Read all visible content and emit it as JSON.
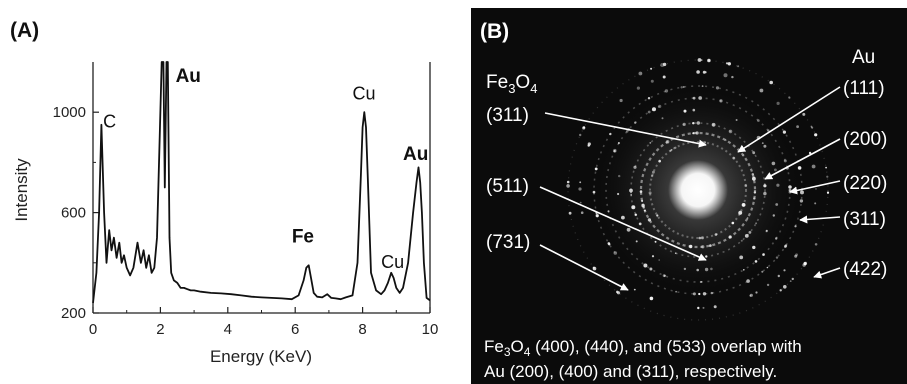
{
  "panel_a": {
    "label": "(A)",
    "chart_data": {
      "type": "line",
      "xlabel": "Energy (KeV)",
      "ylabel": "Intensity",
      "xlim": [
        0,
        10
      ],
      "ylim": [
        200,
        1200
      ],
      "x_ticks": [
        0,
        2,
        4,
        6,
        8,
        10
      ],
      "y_ticks": [
        200,
        600,
        1000
      ],
      "grid": false,
      "series": [
        {
          "x": [
            0,
            0.1,
            0.18,
            0.25,
            0.33,
            0.4,
            0.48,
            0.55,
            0.62,
            0.7,
            0.78,
            0.85,
            0.92,
            1.0,
            1.1,
            1.2,
            1.32,
            1.42,
            1.5,
            1.58,
            1.66,
            1.74,
            1.82,
            1.9,
            1.98,
            2.04,
            2.09,
            2.13,
            2.18,
            2.22,
            2.27,
            2.32,
            2.4,
            2.5,
            2.6,
            2.7,
            2.8,
            2.9,
            3.0,
            3.2,
            3.5,
            3.8,
            4.1,
            4.4,
            4.7,
            5.0,
            5.3,
            5.6,
            5.9,
            6.1,
            6.25,
            6.33,
            6.4,
            6.47,
            6.55,
            6.65,
            6.8,
            6.95,
            7.07,
            7.2,
            7.35,
            7.5,
            7.7,
            7.85,
            7.95,
            8.0,
            8.05,
            8.1,
            8.15,
            8.25,
            8.4,
            8.55,
            8.65,
            8.75,
            8.85,
            8.92,
            9.0,
            9.1,
            9.2,
            9.35,
            9.5,
            9.6,
            9.66,
            9.71,
            9.76,
            9.82,
            9.9,
            10.0
          ],
          "y": [
            240,
            360,
            600,
            950,
            600,
            400,
            530,
            450,
            500,
            420,
            480,
            400,
            430,
            380,
            350,
            380,
            480,
            400,
            450,
            380,
            430,
            360,
            380,
            500,
            900,
            1500,
            1500,
            700,
            1500,
            1500,
            500,
            360,
            330,
            320,
            300,
            300,
            295,
            290,
            290,
            285,
            280,
            278,
            275,
            270,
            265,
            262,
            260,
            258,
            255,
            270,
            330,
            380,
            390,
            340,
            280,
            265,
            262,
            275,
            260,
            258,
            255,
            262,
            270,
            400,
            750,
            940,
            1000,
            940,
            750,
            360,
            290,
            275,
            290,
            320,
            360,
            340,
            300,
            280,
            300,
            400,
            600,
            720,
            780,
            720,
            600,
            400,
            260,
            250
          ]
        }
      ],
      "annotations": [
        {
          "text": "C",
          "x": 0.3,
          "y": 940,
          "bold": false
        },
        {
          "text": "Au",
          "x": 2.45,
          "y": 1120,
          "bold": true
        },
        {
          "text": "Fe",
          "x": 5.9,
          "y": 480,
          "bold": true
        },
        {
          "text": "Cu",
          "x": 7.7,
          "y": 1050,
          "bold": false
        },
        {
          "text": "Cu",
          "x": 8.55,
          "y": 380,
          "bold": false
        },
        {
          "text": "Au",
          "x": 9.2,
          "y": 810,
          "bold": true
        }
      ]
    }
  },
  "panel_b": {
    "label": "(B)",
    "fe3o4_label": "Fe",
    "fe3o4_sub": "3",
    "fe3o4_o": "O",
    "fe3o4_sub2": "4",
    "au_label": "Au",
    "left_labels": [
      "(311)",
      "(511)",
      "(731)"
    ],
    "right_labels": [
      "(111)",
      "(200)",
      "(220)",
      "(311)",
      "(422)"
    ],
    "caption_line1_prefix": "Fe",
    "caption_line1_sub": "3",
    "caption_line1_o": "O",
    "caption_line1_sub2": "4",
    "caption_line1_rest": " (400), (440), and (533) overlap with",
    "caption_line2": "Au (200), (400) and (311),  respectively."
  }
}
